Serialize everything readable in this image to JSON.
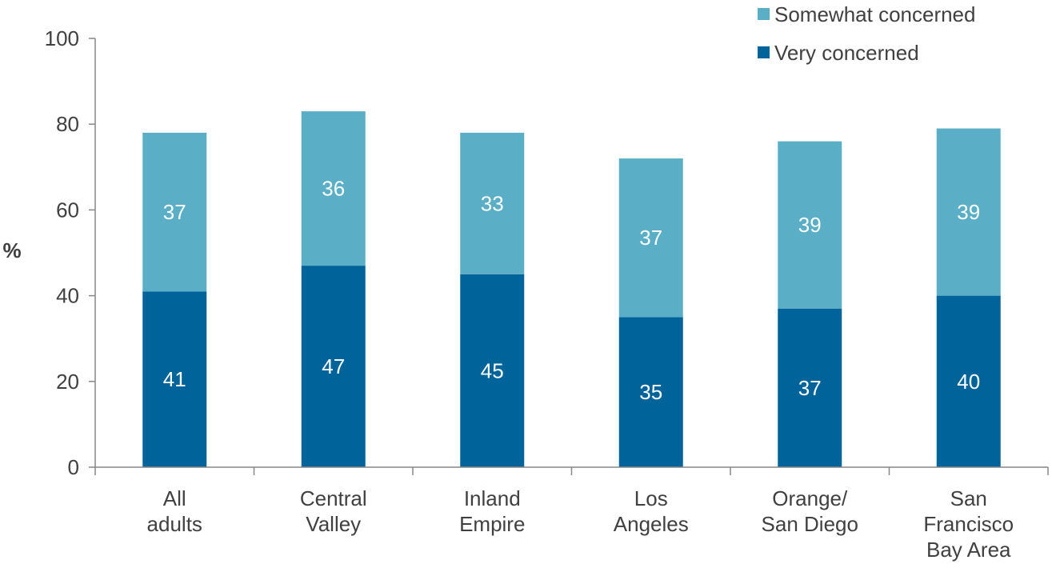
{
  "chart_data": {
    "type": "bar",
    "stacked": true,
    "ylabel": "%",
    "ylim": [
      0,
      100
    ],
    "yticks": [
      "0",
      "20",
      "40",
      "60",
      "80",
      "100"
    ],
    "grid": false,
    "legend_position": "top-right",
    "categories": [
      [
        "All",
        "adults"
      ],
      [
        "Central",
        "Valley"
      ],
      [
        "Inland",
        "Empire"
      ],
      [
        "Los",
        "Angeles"
      ],
      [
        "Orange/",
        "San Diego"
      ],
      [
        "San",
        "Francisco",
        "Bay Area"
      ]
    ],
    "series": [
      {
        "name": "Very concerned",
        "color": "#00649a",
        "values": [
          41,
          47,
          45,
          35,
          37,
          40
        ]
      },
      {
        "name": "Somewhat concerned",
        "color": "#5aafc7",
        "values": [
          37,
          36,
          33,
          37,
          39,
          39
        ]
      }
    ],
    "legend_order": [
      "Somewhat concerned",
      "Very concerned"
    ]
  }
}
